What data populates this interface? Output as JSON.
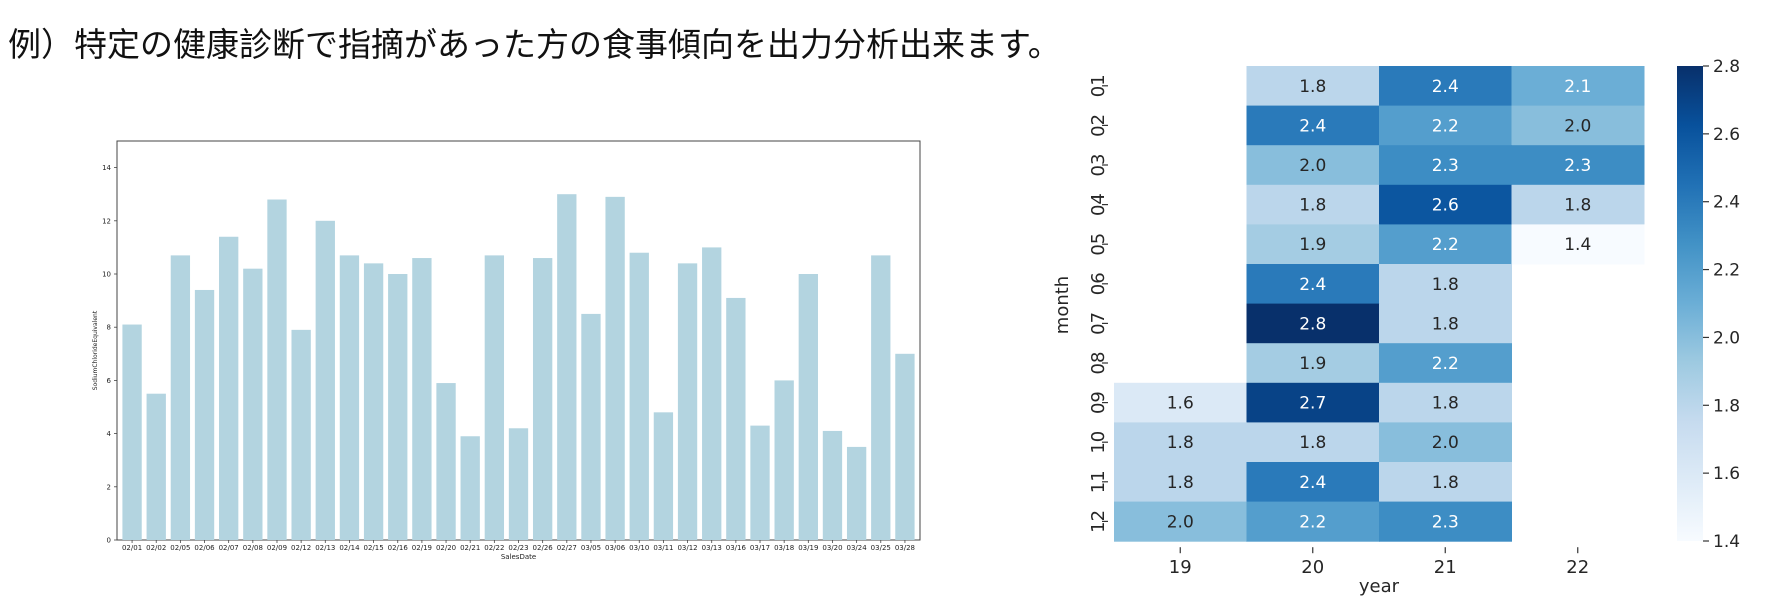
{
  "caption": "例）特定の健康診断で指摘があった方の食事傾向を出力分析出来ます。",
  "colors": {
    "bar": "#b3d4e0",
    "axis": "#000000"
  },
  "chart_data": [
    {
      "type": "bar",
      "xlabel": "SalesDate",
      "ylabel": "SodiumChlorideEquivalent",
      "ylim": [
        0,
        15
      ],
      "yticks": [
        0,
        2,
        4,
        6,
        8,
        10,
        12,
        14
      ],
      "grid": false,
      "categories": [
        "02/01",
        "02/02",
        "02/05",
        "02/06",
        "02/07",
        "02/08",
        "02/09",
        "02/12",
        "02/13",
        "02/14",
        "02/15",
        "02/16",
        "02/19",
        "02/20",
        "02/21",
        "02/22",
        "02/23",
        "02/26",
        "02/27",
        "03/05",
        "03/06",
        "03/10",
        "03/11",
        "03/12",
        "03/13",
        "03/16",
        "03/17",
        "03/18",
        "03/19",
        "03/20",
        "03/24",
        "03/25",
        "03/28"
      ],
      "values": [
        8.1,
        5.5,
        10.7,
        9.4,
        11.4,
        10.2,
        12.8,
        7.9,
        12.0,
        10.7,
        10.4,
        10.0,
        10.6,
        5.9,
        3.9,
        10.7,
        4.2,
        10.6,
        13.0,
        8.5,
        12.9,
        10.8,
        4.8,
        10.4,
        11.0,
        9.1,
        4.3,
        6.0,
        10.0,
        4.1,
        3.5,
        10.7,
        7.0
      ]
    },
    {
      "type": "heatmap",
      "xlabel": "year",
      "ylabel": "month",
      "x": [
        "19",
        "20",
        "21",
        "22"
      ],
      "y": [
        "01",
        "02",
        "03",
        "04",
        "05",
        "06",
        "07",
        "08",
        "09",
        "10",
        "11",
        "12"
      ],
      "values": [
        [
          null,
          1.8,
          2.4,
          2.1
        ],
        [
          null,
          2.4,
          2.2,
          2.0
        ],
        [
          null,
          2.0,
          2.3,
          2.3
        ],
        [
          null,
          1.8,
          2.6,
          1.8
        ],
        [
          null,
          1.9,
          2.2,
          1.4
        ],
        [
          null,
          2.4,
          1.8,
          null
        ],
        [
          null,
          2.8,
          1.8,
          null
        ],
        [
          null,
          1.9,
          2.2,
          null
        ],
        [
          1.6,
          2.7,
          1.8,
          null
        ],
        [
          1.8,
          1.8,
          2.0,
          null
        ],
        [
          1.8,
          2.4,
          1.8,
          null
        ],
        [
          2.0,
          2.2,
          2.3,
          null
        ]
      ],
      "colorbar": {
        "range": [
          1.4,
          2.8
        ],
        "ticks": [
          "1.4",
          "1.6",
          "1.8",
          "2.0",
          "2.2",
          "2.4",
          "2.6",
          "2.8"
        ]
      },
      "colormap": "Blues",
      "grid": false
    }
  ]
}
